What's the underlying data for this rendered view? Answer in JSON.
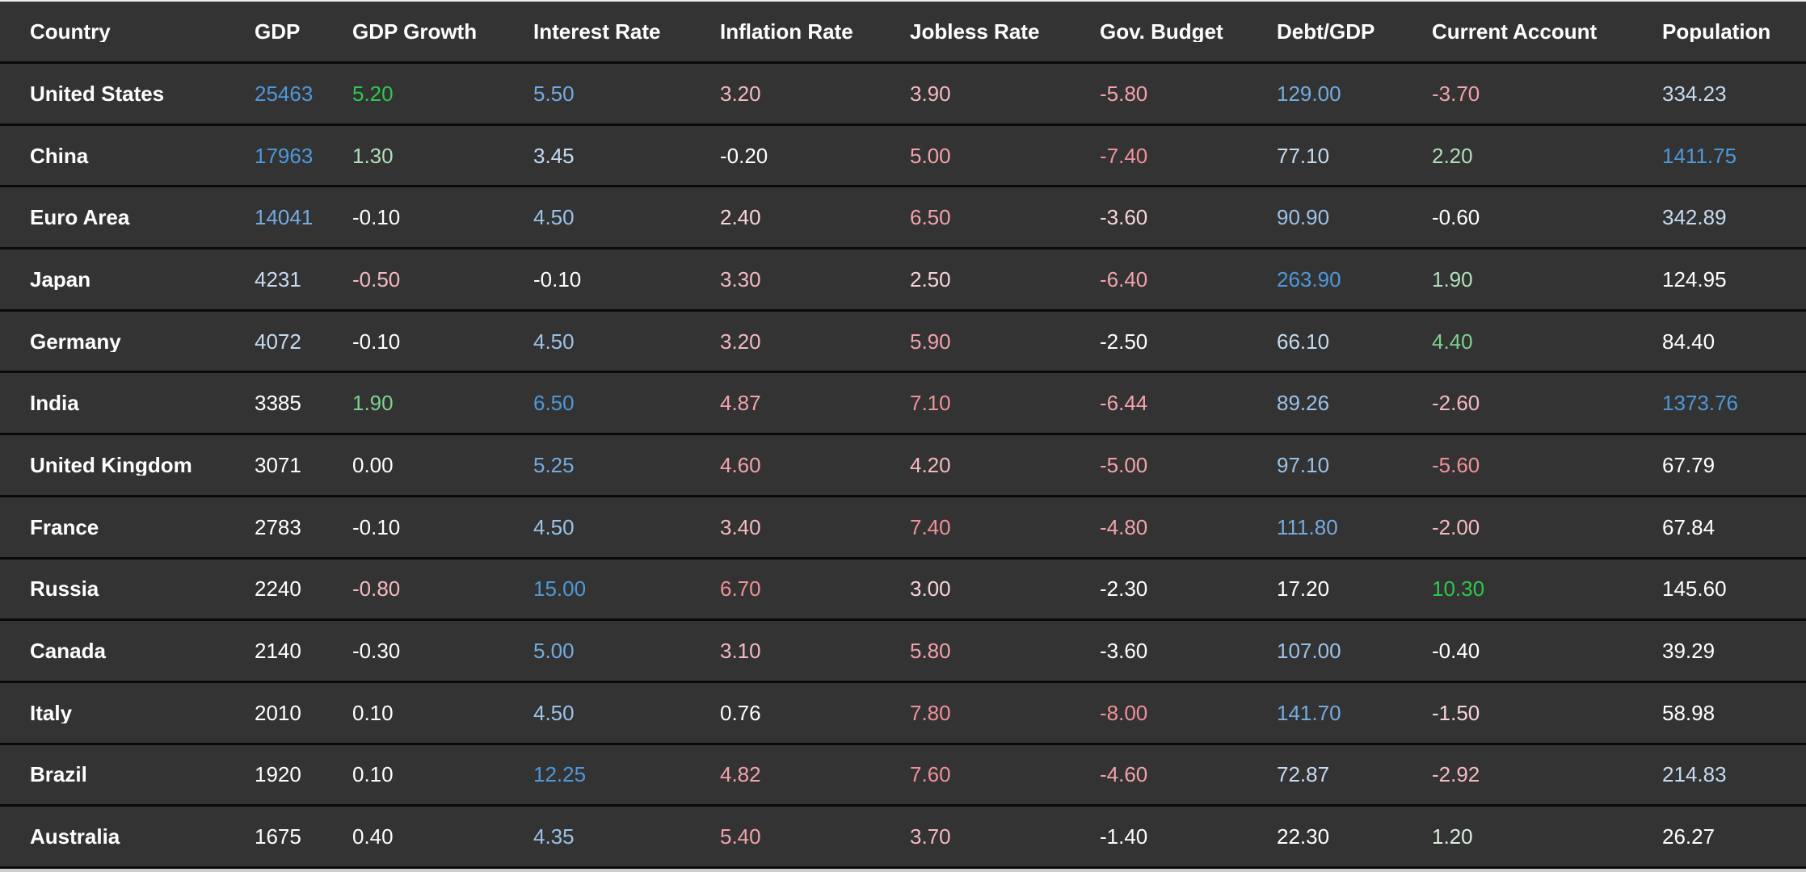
{
  "palette": {
    "w": "#ffffff",
    "b1": "#4e98d9",
    "b2": "#74abdf",
    "b3": "#9bc2e7",
    "b4": "#c6dbf0",
    "g1": "#2dc84d",
    "g2": "#7ed18e",
    "g3": "#b2dfbb",
    "g4": "#d9eedd",
    "r1": "#f0919a",
    "r2": "#f2a3ab",
    "r3": "#f4bac1",
    "r4": "#f8d5d9"
  },
  "theme": {
    "background": "#333333",
    "separator": "#0a0a0a",
    "top_edge_strip": "#ededed",
    "bottom_edge_strip": "#cdcdcd",
    "header_text": "#ffffff"
  },
  "table": {
    "columns": [
      {
        "key": "country",
        "label": "Country"
      },
      {
        "key": "gdp",
        "label": "GDP"
      },
      {
        "key": "gdp-growth",
        "label": "GDP Growth"
      },
      {
        "key": "interest-rate",
        "label": "Interest Rate"
      },
      {
        "key": "inflation-rate",
        "label": "Inflation Rate"
      },
      {
        "key": "jobless-rate",
        "label": "Jobless Rate"
      },
      {
        "key": "gov-budget",
        "label": "Gov. Budget"
      },
      {
        "key": "debt-gdp",
        "label": "Debt/GDP"
      },
      {
        "key": "current-account",
        "label": "Current Account"
      },
      {
        "key": "population",
        "label": "Population"
      }
    ],
    "rows": [
      {
        "country": "United States",
        "cells": [
          {
            "value": "25463",
            "color": "b1"
          },
          {
            "value": "5.20",
            "color": "g1"
          },
          {
            "value": "5.50",
            "color": "b2"
          },
          {
            "value": "3.20",
            "color": "r3"
          },
          {
            "value": "3.90",
            "color": "r3"
          },
          {
            "value": "-5.80",
            "color": "r2"
          },
          {
            "value": "129.00",
            "color": "b2"
          },
          {
            "value": "-3.70",
            "color": "r2"
          },
          {
            "value": "334.23",
            "color": "b4"
          }
        ]
      },
      {
        "country": "China",
        "cells": [
          {
            "value": "17963",
            "color": "b1"
          },
          {
            "value": "1.30",
            "color": "g3"
          },
          {
            "value": "3.45",
            "color": "b4"
          },
          {
            "value": "-0.20",
            "color": "w"
          },
          {
            "value": "5.00",
            "color": "r2"
          },
          {
            "value": "-7.40",
            "color": "r1"
          },
          {
            "value": "77.10",
            "color": "b4"
          },
          {
            "value": "2.20",
            "color": "g3"
          },
          {
            "value": "1411.75",
            "color": "b1"
          }
        ]
      },
      {
        "country": "Euro Area",
        "cells": [
          {
            "value": "14041",
            "color": "b2"
          },
          {
            "value": "-0.10",
            "color": "w"
          },
          {
            "value": "4.50",
            "color": "b3"
          },
          {
            "value": "2.40",
            "color": "r4"
          },
          {
            "value": "6.50",
            "color": "r2"
          },
          {
            "value": "-3.60",
            "color": "r4"
          },
          {
            "value": "90.90",
            "color": "b3"
          },
          {
            "value": "-0.60",
            "color": "w"
          },
          {
            "value": "342.89",
            "color": "b4"
          }
        ]
      },
      {
        "country": "Japan",
        "cells": [
          {
            "value": "4231",
            "color": "b4"
          },
          {
            "value": "-0.50",
            "color": "r3"
          },
          {
            "value": "-0.10",
            "color": "w"
          },
          {
            "value": "3.30",
            "color": "r3"
          },
          {
            "value": "2.50",
            "color": "r4"
          },
          {
            "value": "-6.40",
            "color": "r2"
          },
          {
            "value": "263.90",
            "color": "b1"
          },
          {
            "value": "1.90",
            "color": "g3"
          },
          {
            "value": "124.95",
            "color": "w"
          }
        ]
      },
      {
        "country": "Germany",
        "cells": [
          {
            "value": "4072",
            "color": "b4"
          },
          {
            "value": "-0.10",
            "color": "w"
          },
          {
            "value": "4.50",
            "color": "b3"
          },
          {
            "value": "3.20",
            "color": "r3"
          },
          {
            "value": "5.90",
            "color": "r2"
          },
          {
            "value": "-2.50",
            "color": "w"
          },
          {
            "value": "66.10",
            "color": "b4"
          },
          {
            "value": "4.40",
            "color": "g2"
          },
          {
            "value": "84.40",
            "color": "w"
          }
        ]
      },
      {
        "country": "India",
        "cells": [
          {
            "value": "3385",
            "color": "w"
          },
          {
            "value": "1.90",
            "color": "g2"
          },
          {
            "value": "6.50",
            "color": "b1"
          },
          {
            "value": "4.87",
            "color": "r2"
          },
          {
            "value": "7.10",
            "color": "r1"
          },
          {
            "value": "-6.44",
            "color": "r2"
          },
          {
            "value": "89.26",
            "color": "b3"
          },
          {
            "value": "-2.60",
            "color": "r3"
          },
          {
            "value": "1373.76",
            "color": "b1"
          }
        ]
      },
      {
        "country": "United Kingdom",
        "cells": [
          {
            "value": "3071",
            "color": "w"
          },
          {
            "value": "0.00",
            "color": "w"
          },
          {
            "value": "5.25",
            "color": "b2"
          },
          {
            "value": "4.60",
            "color": "r2"
          },
          {
            "value": "4.20",
            "color": "r3"
          },
          {
            "value": "-5.00",
            "color": "r2"
          },
          {
            "value": "97.10",
            "color": "b3"
          },
          {
            "value": "-5.60",
            "color": "r1"
          },
          {
            "value": "67.79",
            "color": "w"
          }
        ]
      },
      {
        "country": "France",
        "cells": [
          {
            "value": "2783",
            "color": "w"
          },
          {
            "value": "-0.10",
            "color": "w"
          },
          {
            "value": "4.50",
            "color": "b3"
          },
          {
            "value": "3.40",
            "color": "r3"
          },
          {
            "value": "7.40",
            "color": "r1"
          },
          {
            "value": "-4.80",
            "color": "r2"
          },
          {
            "value": "111.80",
            "color": "b2"
          },
          {
            "value": "-2.00",
            "color": "r3"
          },
          {
            "value": "67.84",
            "color": "w"
          }
        ]
      },
      {
        "country": "Russia",
        "cells": [
          {
            "value": "2240",
            "color": "w"
          },
          {
            "value": "-0.80",
            "color": "r3"
          },
          {
            "value": "15.00",
            "color": "b1"
          },
          {
            "value": "6.70",
            "color": "r1"
          },
          {
            "value": "3.00",
            "color": "r4"
          },
          {
            "value": "-2.30",
            "color": "w"
          },
          {
            "value": "17.20",
            "color": "w"
          },
          {
            "value": "10.30",
            "color": "g1"
          },
          {
            "value": "145.60",
            "color": "w"
          }
        ]
      },
      {
        "country": "Canada",
        "cells": [
          {
            "value": "2140",
            "color": "w"
          },
          {
            "value": "-0.30",
            "color": "w"
          },
          {
            "value": "5.00",
            "color": "b2"
          },
          {
            "value": "3.10",
            "color": "r3"
          },
          {
            "value": "5.80",
            "color": "r2"
          },
          {
            "value": "-3.60",
            "color": "w"
          },
          {
            "value": "107.00",
            "color": "b3"
          },
          {
            "value": "-0.40",
            "color": "w"
          },
          {
            "value": "39.29",
            "color": "w"
          }
        ]
      },
      {
        "country": "Italy",
        "cells": [
          {
            "value": "2010",
            "color": "w"
          },
          {
            "value": "0.10",
            "color": "w"
          },
          {
            "value": "4.50",
            "color": "b3"
          },
          {
            "value": "0.76",
            "color": "w"
          },
          {
            "value": "7.80",
            "color": "r1"
          },
          {
            "value": "-8.00",
            "color": "r1"
          },
          {
            "value": "141.70",
            "color": "b2"
          },
          {
            "value": "-1.50",
            "color": "r4"
          },
          {
            "value": "58.98",
            "color": "w"
          }
        ]
      },
      {
        "country": "Brazil",
        "cells": [
          {
            "value": "1920",
            "color": "w"
          },
          {
            "value": "0.10",
            "color": "w"
          },
          {
            "value": "12.25",
            "color": "b1"
          },
          {
            "value": "4.82",
            "color": "r2"
          },
          {
            "value": "7.60",
            "color": "r1"
          },
          {
            "value": "-4.60",
            "color": "r2"
          },
          {
            "value": "72.87",
            "color": "b4"
          },
          {
            "value": "-2.92",
            "color": "r3"
          },
          {
            "value": "214.83",
            "color": "b4"
          }
        ]
      },
      {
        "country": "Australia",
        "cells": [
          {
            "value": "1675",
            "color": "w"
          },
          {
            "value": "0.40",
            "color": "w"
          },
          {
            "value": "4.35",
            "color": "b3"
          },
          {
            "value": "5.40",
            "color": "r2"
          },
          {
            "value": "3.70",
            "color": "r3"
          },
          {
            "value": "-1.40",
            "color": "w"
          },
          {
            "value": "22.30",
            "color": "w"
          },
          {
            "value": "1.20",
            "color": "g4"
          },
          {
            "value": "26.27",
            "color": "w"
          }
        ]
      }
    ]
  }
}
